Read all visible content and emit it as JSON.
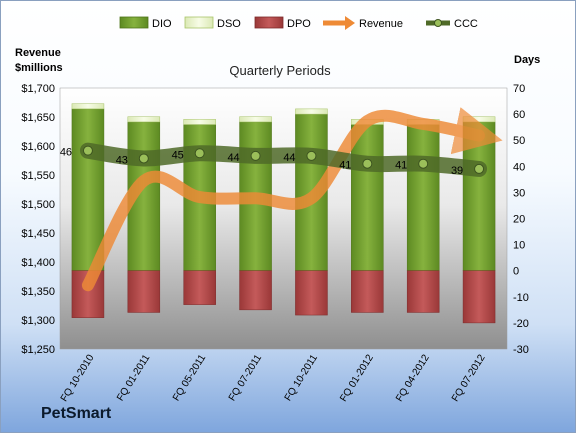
{
  "chart_data": {
    "type": "bar",
    "title": "Quarterly Periods",
    "company": "PetSmart",
    "left_axis": {
      "label_line1": "Revenue",
      "label_line2": "$millions",
      "min": 1250,
      "max": 1700,
      "step": 50,
      "ticks": [
        "$1,250",
        "$1,300",
        "$1,350",
        "$1,400",
        "$1,450",
        "$1,500",
        "$1,550",
        "$1,600",
        "$1,650",
        "$1,700"
      ]
    },
    "right_axis": {
      "label": "Days",
      "min": -30,
      "max": 70,
      "step": 10,
      "ticks": [
        "-30",
        "-20",
        "-10",
        "0",
        "10",
        "20",
        "30",
        "40",
        "50",
        "60",
        "70"
      ]
    },
    "categories": [
      "FQ 10-2010",
      "FQ 01-2011",
      "FQ 05-2011",
      "FQ 07-2011",
      "FQ 10-2011",
      "FQ 01-2012",
      "FQ 04-2012",
      "FQ 07-2012"
    ],
    "series": [
      {
        "name": "DIO",
        "type": "bar-stacked",
        "axis": "right",
        "color": "#6e9a2c",
        "values": [
          62,
          57,
          56,
          57,
          60,
          56,
          56,
          57
        ]
      },
      {
        "name": "DSO",
        "type": "bar-stacked",
        "axis": "right",
        "color": "#eef7d0",
        "values": [
          2,
          2,
          2,
          2,
          2,
          2,
          2,
          2
        ]
      },
      {
        "name": "DPO",
        "type": "bar-negative",
        "axis": "right",
        "color": "#b84a4a",
        "values": [
          -18,
          -16,
          -13,
          -15,
          -17,
          -16,
          -16,
          -20
        ]
      },
      {
        "name": "Revenue",
        "type": "line",
        "axis": "left",
        "color": "#ee8a36",
        "values": [
          1360,
          1540,
          1512,
          1510,
          1510,
          1643,
          1638,
          1618
        ]
      },
      {
        "name": "CCC",
        "type": "line",
        "axis": "right",
        "color": "#556b2f",
        "values": [
          46,
          43,
          45,
          44,
          44,
          41,
          41,
          39
        ]
      }
    ],
    "ccc_labels": [
      "46",
      "43",
      "45",
      "44",
      "44",
      "41",
      "41",
      "39"
    ],
    "legend_position": "top"
  }
}
